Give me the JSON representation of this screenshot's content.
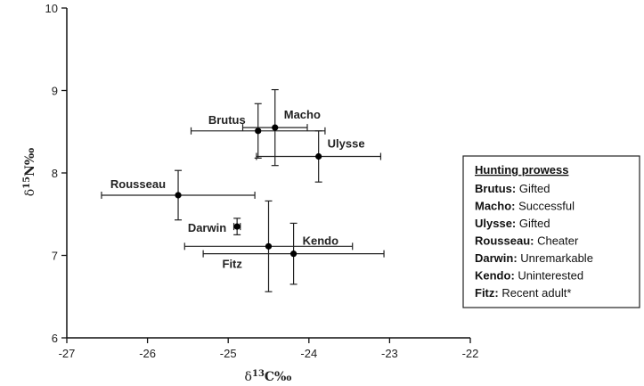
{
  "chart_data": {
    "type": "scatter",
    "title": "",
    "xlabel": {
      "prefix": "δ",
      "sup": "13",
      "main": "C‰"
    },
    "ylabel": {
      "prefix": "δ",
      "sup": "15",
      "main": "N‰"
    },
    "xlim": [
      -27,
      -22
    ],
    "ylim": [
      6,
      10
    ],
    "xticks": [
      -27,
      -26,
      -25,
      -24,
      -23,
      -22
    ],
    "yticks": [
      6,
      7,
      8,
      9,
      10
    ],
    "grid": false,
    "points": [
      {
        "name": "Brutus",
        "x": -24.63,
        "y": 8.51,
        "xerr": 0.83,
        "yerr": 0.33,
        "label_pos": "upper-left"
      },
      {
        "name": "Macho",
        "x": -24.42,
        "y": 8.55,
        "xerr": 0.4,
        "yerr": 0.46,
        "label_pos": "upper-right"
      },
      {
        "name": "Ulysse",
        "x": -23.88,
        "y": 8.2,
        "xerr": 0.77,
        "yerr": 0.31,
        "label_pos": "upper-right"
      },
      {
        "name": "Rousseau",
        "x": -25.62,
        "y": 7.73,
        "xerr": 0.95,
        "yerr": 0.3,
        "label_pos": "upper-left"
      },
      {
        "name": "Darwin",
        "x": -24.89,
        "y": 7.35,
        "xerr": 0.04,
        "yerr": 0.1,
        "label_pos": "left"
      },
      {
        "name": "Kendo",
        "x": -24.19,
        "y": 7.02,
        "xerr": 1.12,
        "yerr": 0.37,
        "label_pos": "upper-right"
      },
      {
        "name": "Fitz",
        "x": -24.5,
        "y": 7.11,
        "xerr": 1.04,
        "yerr": 0.55,
        "label_pos": "lower-left"
      }
    ],
    "legend": {
      "position": "right",
      "title": "Hunting prowess",
      "entries": [
        {
          "name": "Brutus",
          "value": "Gifted"
        },
        {
          "name": "Macho",
          "value": "Successful"
        },
        {
          "name": "Ulysse",
          "value": "Gifted"
        },
        {
          "name": "Rousseau",
          "value": "Cheater"
        },
        {
          "name": "Darwin",
          "value": "Unremarkable"
        },
        {
          "name": "Kendo",
          "value": "Uninterested"
        },
        {
          "name": "Fitz",
          "value": "Recent adult*"
        }
      ]
    }
  }
}
